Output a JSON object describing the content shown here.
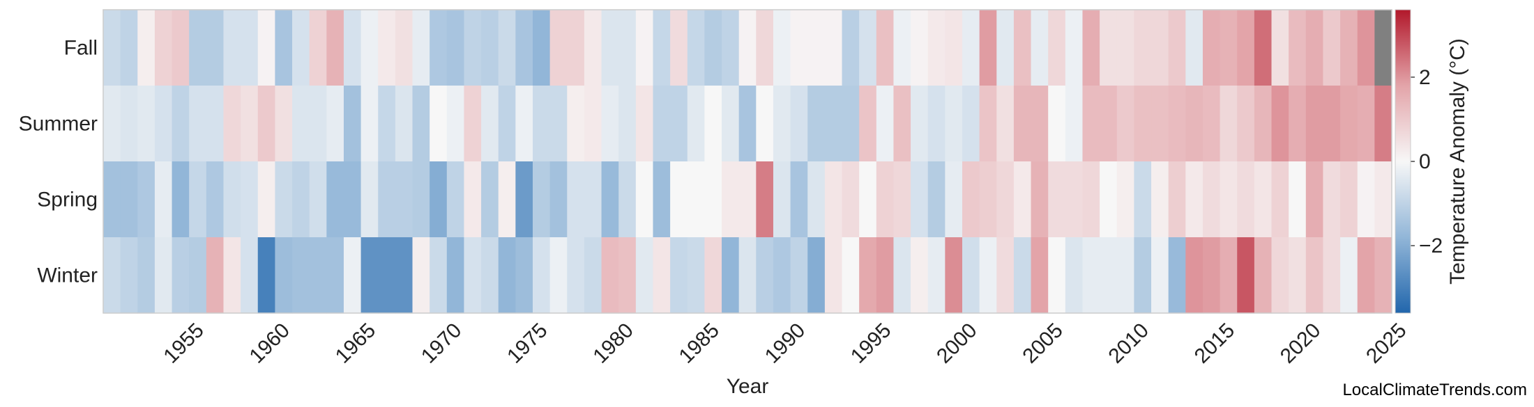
{
  "chart_data": {
    "type": "heatmap",
    "xlabel": "Year",
    "colorbar_label": "Temperature Anomaly (°C)",
    "colorbar_ticks": [
      -2,
      0,
      2
    ],
    "colorbar_range": [
      -3.6,
      3.6
    ],
    "colormap": [
      "#2166ac",
      "#f7f7f7",
      "#b2182b"
    ],
    "missing_color": "#808080",
    "x_ticks": [
      1955,
      1960,
      1965,
      1970,
      1975,
      1980,
      1985,
      1990,
      1995,
      2000,
      2005,
      2010,
      2015,
      2020,
      2025
    ],
    "x_start_year": 1950,
    "x_end_year": 2025,
    "rows": [
      "Fall",
      "Summer",
      "Spring",
      "Winter"
    ],
    "values": {
      "Fall": [
        -0.8,
        -1.0,
        0.2,
        0.8,
        1.0,
        -1.2,
        -1.2,
        -0.6,
        -0.6,
        0.1,
        -1.4,
        -0.6,
        0.8,
        1.5,
        -0.6,
        -0.2,
        0.3,
        0.5,
        -0.3,
        -1.3,
        -1.4,
        -1.0,
        -1.1,
        -0.8,
        -1.4,
        -1.8,
        0.8,
        0.8,
        0.3,
        -0.5,
        -0.5,
        0.1,
        -0.9,
        0.6,
        -0.9,
        -1.2,
        -1.0,
        0.1,
        0.7,
        -0.2,
        0.1,
        0.1,
        0.1,
        -1.1,
        -0.6,
        1.2,
        -0.2,
        0.1,
        0.3,
        0.4,
        -0.3,
        1.9,
        -0.4,
        1.2,
        -0.3,
        0.7,
        -0.2,
        1.6,
        0.5,
        0.5,
        0.7,
        0.7,
        1.0,
        -0.4,
        1.6,
        1.5,
        1.8,
        2.5,
        0.5,
        1.3,
        1.6,
        1.0,
        1.5,
        2.0,
        null
      ],
      "Summer": [
        -0.4,
        -0.5,
        -0.4,
        -0.6,
        -1.0,
        -0.6,
        -0.6,
        0.7,
        0.5,
        1.0,
        0.5,
        -0.5,
        -0.5,
        -0.3,
        -1.5,
        -0.2,
        -0.9,
        -0.5,
        -1.2,
        0.0,
        -0.2,
        0.8,
        -0.4,
        -1.0,
        -0.2,
        -0.8,
        -0.8,
        0.2,
        0.3,
        -0.3,
        -0.5,
        0.4,
        -1.0,
        -1.0,
        -0.4,
        0.0,
        -0.4,
        -1.4,
        0.0,
        -0.4,
        -0.6,
        -1.2,
        -1.2,
        -1.2,
        1.1,
        -0.2,
        1.2,
        -0.4,
        -0.6,
        -0.4,
        -0.6,
        1.1,
        0.5,
        1.4,
        1.4,
        0.0,
        -0.2,
        1.3,
        1.3,
        1.0,
        1.2,
        1.2,
        1.3,
        1.4,
        1.3,
        0.7,
        1.0,
        1.4,
        2.0,
        1.6,
        1.9,
        1.9,
        1.7,
        1.6,
        2.3
      ],
      "Spring": [
        -1.5,
        -1.5,
        -1.3,
        -0.3,
        -1.8,
        -0.9,
        -1.3,
        -0.7,
        -0.6,
        0.2,
        -0.8,
        -1.0,
        -0.7,
        -1.7,
        -1.7,
        -0.4,
        -1.1,
        -1.1,
        -1.2,
        -2.0,
        -1.0,
        0.3,
        -1.2,
        0.2,
        -2.4,
        -1.2,
        -1.5,
        -0.6,
        -0.6,
        -1.7,
        -0.8,
        0.0,
        -1.6,
        0.0,
        0.0,
        0.0,
        0.3,
        0.3,
        2.3,
        -0.5,
        -1.4,
        -0.5,
        0.4,
        0.6,
        0.0,
        0.8,
        0.7,
        -0.6,
        -1.2,
        -0.3,
        1.0,
        0.9,
        0.7,
        0.3,
        1.5,
        0.6,
        0.6,
        0.7,
        0.0,
        0.2,
        -0.8,
        0.2,
        0.9,
        0.3,
        0.6,
        0.4,
        0.6,
        0.4,
        0.8,
        0.0,
        1.6,
        0.6,
        0.8,
        0.1,
        0.3
      ],
      "Winter": [
        -0.8,
        -1.0,
        -1.2,
        -0.4,
        -1.1,
        -1.2,
        1.5,
        0.4,
        -0.6,
        -3.0,
        -1.6,
        -1.5,
        -1.5,
        -1.5,
        -0.2,
        -2.6,
        -2.6,
        -2.6,
        0.2,
        -0.8,
        -1.8,
        -0.6,
        -0.8,
        -1.8,
        -1.6,
        -0.6,
        -0.2,
        -0.6,
        -0.8,
        1.3,
        1.2,
        -0.4,
        0.4,
        -0.9,
        -0.8,
        0.7,
        -1.8,
        -0.5,
        -1.1,
        -1.3,
        -1.0,
        -2.0,
        0.4,
        0.0,
        1.7,
        1.9,
        -0.5,
        0.2,
        -0.3,
        2.1,
        -0.7,
        -0.2,
        0.6,
        -0.8,
        1.8,
        0.0,
        -0.5,
        -0.3,
        -0.3,
        -0.3,
        -1.2,
        -0.2,
        -1.7,
        2.0,
        1.9,
        1.6,
        2.8,
        1.5,
        0.7,
        0.5,
        1.1,
        0.6,
        -0.2,
        1.8,
        1.5
      ]
    }
  },
  "watermark": "LocalClimateTrends.com"
}
